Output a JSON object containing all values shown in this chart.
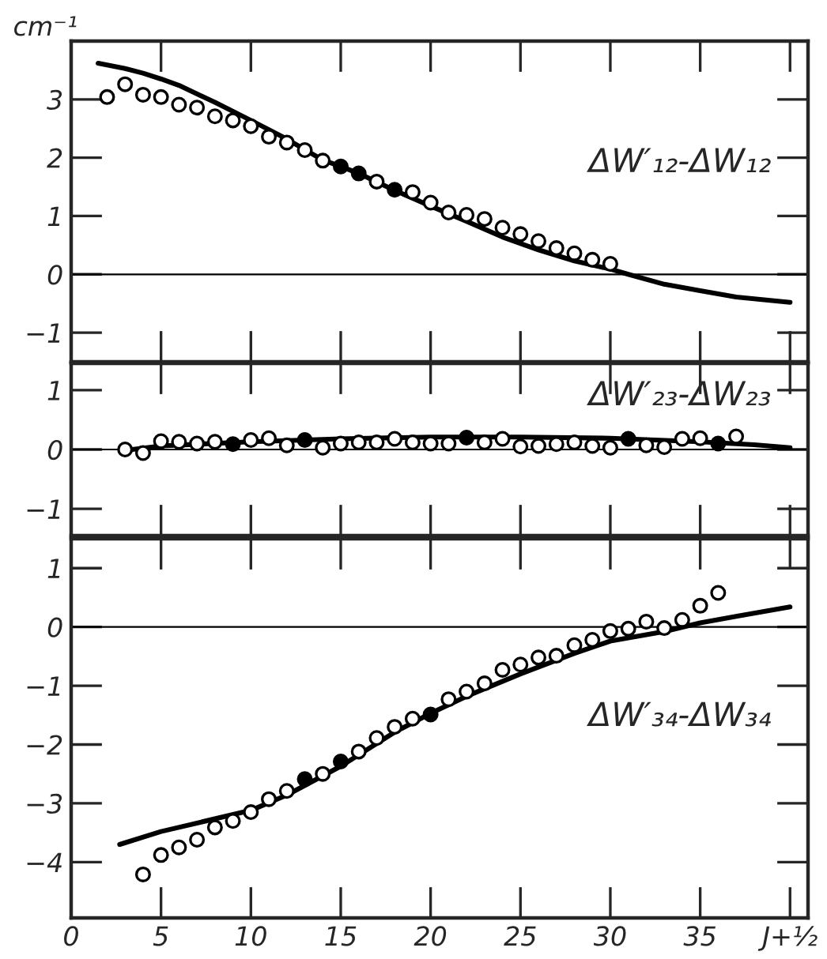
{
  "chart_data": [
    {
      "type": "scatter",
      "ylabel": "cm⁻¹",
      "annotations": [
        "ΔW′₁₂-ΔW₁₂"
      ],
      "xlim": [
        0,
        41
      ],
      "xticks": [
        0,
        5,
        10,
        15,
        20,
        25,
        30,
        35,
        40
      ],
      "ylim": [
        -1.5,
        4
      ],
      "yticks": [
        -1,
        0,
        1,
        2,
        3
      ],
      "tick_labels": "y",
      "marker": "circle",
      "grid": false,
      "ref_lines": [
        {
          "axis": "y",
          "value": 0,
          "color": "#000000"
        }
      ],
      "series": [
        {
          "color": "#000000",
          "x": [
            2,
            3,
            4,
            5,
            6,
            7,
            8,
            9,
            10,
            11,
            12,
            13,
            14,
            15,
            16,
            17,
            18,
            19,
            20,
            21,
            22,
            23,
            24,
            25,
            26,
            27,
            28,
            29,
            30
          ],
          "values": [
            3.04,
            3.26,
            3.08,
            3.04,
            2.91,
            2.86,
            2.71,
            2.64,
            2.54,
            2.36,
            2.26,
            2.13,
            1.95,
            1.85,
            1.73,
            1.59,
            1.45,
            1.41,
            1.23,
            1.06,
            1.02,
            0.95,
            0.8,
            0.69,
            0.57,
            0.45,
            0.36,
            0.25,
            0.18
          ],
          "colors": [
            "#ffffff",
            "#ffffff",
            "#ffffff",
            "#ffffff",
            "#ffffff",
            "#ffffff",
            "#ffffff",
            "#ffffff",
            "#ffffff",
            "#ffffff",
            "#ffffff",
            "#ffffff",
            "#ffffff",
            "#000000",
            "#000000",
            "#ffffff",
            "#000000",
            "#ffffff",
            "#ffffff",
            "#ffffff",
            "#ffffff",
            "#ffffff",
            "#ffffff",
            "#ffffff",
            "#ffffff",
            "#ffffff",
            "#ffffff",
            "#ffffff",
            "#ffffff"
          ]
        },
        {
          "type": "line",
          "marker": "none",
          "color": "#000000",
          "x": [
            1.5,
            3,
            4,
            5,
            6,
            8,
            10,
            12,
            14,
            15,
            16,
            18,
            20,
            22,
            24,
            26,
            28,
            30,
            31,
            33,
            35,
            37,
            40
          ],
          "values": [
            3.62,
            3.53,
            3.45,
            3.35,
            3.24,
            2.95,
            2.64,
            2.32,
            1.96,
            1.85,
            1.73,
            1.44,
            1.17,
            0.91,
            0.64,
            0.42,
            0.23,
            0.09,
            0,
            -0.17,
            -0.28,
            -0.39,
            -0.48
          ]
        }
      ]
    },
    {
      "type": "scatter",
      "annotations": [
        "ΔW′₂₃-ΔW₂₃"
      ],
      "xlim": [
        0,
        41
      ],
      "xticks": [
        0,
        5,
        10,
        15,
        20,
        25,
        30,
        35,
        40
      ],
      "ylim": [
        -1.45,
        1.45
      ],
      "yticks": [
        -1,
        0,
        1
      ],
      "tick_labels": "y",
      "marker": "circle",
      "grid": false,
      "ref_lines": [
        {
          "axis": "y",
          "value": 0,
          "color": "#000000"
        }
      ],
      "series": [
        {
          "color": "#000000",
          "x": [
            3,
            4,
            5,
            6,
            7,
            8,
            9,
            10,
            11,
            12,
            13,
            14,
            15,
            16,
            17,
            18,
            19,
            20,
            21,
            22,
            23,
            24,
            25,
            26,
            27,
            28,
            29,
            30,
            31,
            32,
            33,
            34,
            35,
            36,
            37
          ],
          "values": [
            0.0,
            -0.06,
            0.14,
            0.13,
            0.1,
            0.13,
            0.09,
            0.16,
            0.19,
            0.07,
            0.16,
            0.03,
            0.1,
            0.12,
            0.12,
            0.18,
            0.12,
            0.1,
            0.1,
            0.2,
            0.12,
            0.18,
            0.05,
            0.06,
            0.09,
            0.12,
            0.06,
            0.03,
            0.18,
            0.07,
            0.04,
            0.18,
            0.19,
            0.1,
            0.22
          ],
          "colors": [
            "#ffffff",
            "#ffffff",
            "#ffffff",
            "#ffffff",
            "#ffffff",
            "#ffffff",
            "#000000",
            "#ffffff",
            "#ffffff",
            "#ffffff",
            "#000000",
            "#ffffff",
            "#ffffff",
            "#ffffff",
            "#ffffff",
            "#ffffff",
            "#ffffff",
            "#ffffff",
            "#ffffff",
            "#000000",
            "#ffffff",
            "#ffffff",
            "#ffffff",
            "#ffffff",
            "#ffffff",
            "#ffffff",
            "#ffffff",
            "#ffffff",
            "#000000",
            "#ffffff",
            "#ffffff",
            "#ffffff",
            "#ffffff",
            "#000000",
            "#ffffff"
          ]
        },
        {
          "type": "line",
          "marker": "none",
          "color": "#000000",
          "x": [
            3.4,
            5,
            10,
            15,
            20,
            25,
            30,
            35,
            38,
            40
          ],
          "values": [
            0.0,
            0.06,
            0.13,
            0.18,
            0.21,
            0.21,
            0.19,
            0.13,
            0.08,
            0.03
          ]
        }
      ]
    },
    {
      "type": "scatter",
      "annotations": [
        "ΔW′₃₄-ΔW₃₄"
      ],
      "xlim": [
        0,
        41
      ],
      "xticks": [
        0,
        5,
        10,
        15,
        20,
        25,
        30,
        35,
        {
          "value": 40,
          "label": "J+½"
        }
      ],
      "ylim": [
        -4.95,
        1.5
      ],
      "yticks": [
        -4,
        -3,
        -2,
        -1,
        0,
        1
      ],
      "marker": "circle",
      "grid": false,
      "ref_lines": [
        {
          "axis": "y",
          "value": 0,
          "color": "#000000"
        }
      ],
      "series": [
        {
          "color": "#000000",
          "x": [
            4,
            5,
            6,
            7,
            8,
            9,
            10,
            11,
            12,
            13,
            14,
            15,
            16,
            17,
            18,
            19,
            20,
            21,
            22,
            23,
            24,
            25,
            26,
            27,
            28,
            29,
            30,
            31,
            32,
            33,
            34,
            35,
            36
          ],
          "values": [
            -4.21,
            -3.88,
            -3.75,
            -3.62,
            -3.41,
            -3.3,
            -3.15,
            -2.93,
            -2.79,
            -2.59,
            -2.5,
            -2.29,
            -2.12,
            -1.89,
            -1.7,
            -1.56,
            -1.49,
            -1.23,
            -1.1,
            -0.96,
            -0.73,
            -0.64,
            -0.52,
            -0.49,
            -0.31,
            -0.22,
            -0.07,
            -0.03,
            0.09,
            -0.02,
            0.12,
            0.36,
            0.58
          ],
          "colors": [
            "#ffffff",
            "#ffffff",
            "#ffffff",
            "#ffffff",
            "#ffffff",
            "#ffffff",
            "#ffffff",
            "#ffffff",
            "#ffffff",
            "#000000",
            "#ffffff",
            "#000000",
            "#ffffff",
            "#ffffff",
            "#ffffff",
            "#ffffff",
            "#000000",
            "#ffffff",
            "#ffffff",
            "#ffffff",
            "#ffffff",
            "#ffffff",
            "#ffffff",
            "#ffffff",
            "#ffffff",
            "#ffffff",
            "#ffffff",
            "#ffffff",
            "#ffffff",
            "#ffffff",
            "#ffffff",
            "#ffffff",
            "#ffffff"
          ]
        },
        {
          "type": "line",
          "marker": "none",
          "color": "#000000",
          "x": [
            2.7,
            5,
            10,
            12,
            15,
            18,
            20,
            22,
            25,
            28,
            30,
            33,
            35,
            37,
            40
          ],
          "values": [
            -3.7,
            -3.48,
            -3.12,
            -2.86,
            -2.37,
            -1.79,
            -1.47,
            -1.18,
            -0.8,
            -0.45,
            -0.24,
            -0.08,
            0.07,
            0.18,
            0.34
          ]
        }
      ]
    }
  ]
}
